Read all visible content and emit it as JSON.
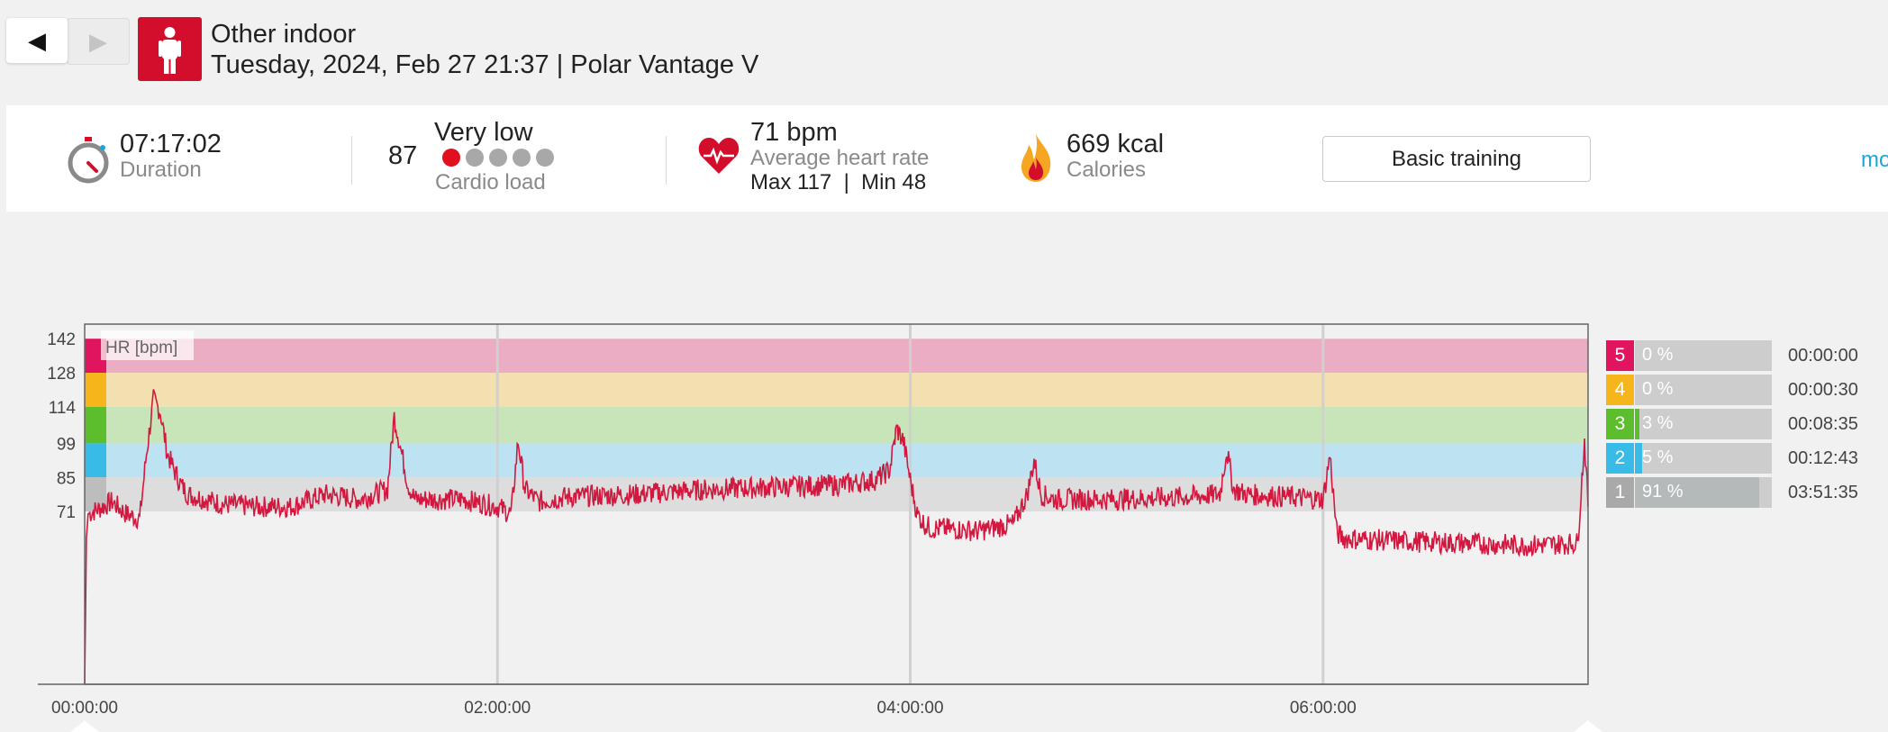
{
  "header": {
    "back_label": "◀",
    "forward_label": "▶",
    "sport_name": "Other indoor",
    "session_subtitle": "Tuesday, 2024, Feb 27 21:37 | Polar Vantage V"
  },
  "summary": {
    "duration_value": "07:17:02",
    "duration_label": "Duration",
    "cardio_value": "87",
    "cardio_level": "Very low",
    "cardio_label": "Cardio load",
    "cardio_dots_filled": 1,
    "cardio_dots_total": 5,
    "hr_value": "71 bpm",
    "hr_label": "Average heart rate",
    "hr_max_min": "Max 117  |  Min 48",
    "calories_value": "669 kcal",
    "calories_label": "Calories",
    "basic_training_label": "Basic training",
    "more_link": "mo"
  },
  "colors": {
    "brand_red": "#d30e2d",
    "hr_line": "#d3183f",
    "zone5": "#e1155f",
    "zone4": "#f7b51c",
    "zone3": "#5cbe2d",
    "zone2": "#38bbe6",
    "zone1": "#bdbdbd",
    "link": "#1ba6dc"
  },
  "chart_data": {
    "type": "line",
    "title": "",
    "ylabel": "HR [bpm]",
    "xlabel": "",
    "y_ticks": [
      142,
      128,
      114,
      99,
      85,
      71
    ],
    "ylim": [
      0,
      148
    ],
    "x_ticks": [
      "00:00:00",
      "02:00:00",
      "04:00:00",
      "06:00:00"
    ],
    "x_tick_seconds": [
      0,
      7200,
      14400,
      21600
    ],
    "xlim_seconds": [
      0,
      26222
    ],
    "grid": "vertical",
    "zones": [
      {
        "zone": 5,
        "min": 128,
        "max": 142
      },
      {
        "zone": 4,
        "min": 114,
        "max": 128
      },
      {
        "zone": 3,
        "min": 99,
        "max": 114
      },
      {
        "zone": 2,
        "min": 85,
        "max": 99
      },
      {
        "zone": 1,
        "min": 71,
        "max": 85
      }
    ],
    "series": [
      {
        "x_minutes": [
          0,
          0.5,
          1,
          4,
          8,
          12,
          16,
          18,
          20,
          22,
          24,
          26,
          28,
          30,
          40,
          50,
          60,
          70,
          80,
          88,
          90,
          92,
          94,
          96,
          100,
          110,
          120,
          124,
          126,
          128,
          132,
          140,
          160,
          180,
          200,
          220,
          230,
          234,
          236,
          238,
          240,
          242,
          244,
          246,
          250,
          260,
          270,
          274,
          276,
          278,
          282,
          300,
          320,
          330,
          332,
          334,
          338,
          350,
          360,
          362,
          364,
          366,
          380,
          400,
          420,
          434,
          436,
          437
        ],
        "values": [
          0,
          60,
          70,
          72,
          75,
          70,
          68,
          95,
          117,
          112,
          95,
          88,
          82,
          78,
          74,
          73,
          73,
          78,
          76,
          80,
          110,
          96,
          82,
          76,
          76,
          76,
          73,
          70,
          100,
          80,
          75,
          77,
          78,
          80,
          81,
          82,
          84,
          88,
          105,
          100,
          84,
          70,
          66,
          64,
          64,
          63,
          66,
          78,
          92,
          78,
          76,
          76,
          77,
          78,
          96,
          80,
          78,
          77,
          76,
          94,
          62,
          60,
          59,
          58,
          57,
          58,
          100,
          75
        ]
      }
    ]
  },
  "zone_table": [
    {
      "zone": "5",
      "pct": "0 %",
      "fraction": 0.0,
      "time": "00:00:00"
    },
    {
      "zone": "4",
      "pct": "0 %",
      "fraction": 0.0,
      "time": "00:00:30"
    },
    {
      "zone": "3",
      "pct": "3 %",
      "fraction": 0.03,
      "time": "00:08:35"
    },
    {
      "zone": "2",
      "pct": "5 %",
      "fraction": 0.05,
      "time": "00:12:43"
    },
    {
      "zone": "1",
      "pct": "91 %",
      "fraction": 0.91,
      "time": "03:51:35"
    }
  ]
}
